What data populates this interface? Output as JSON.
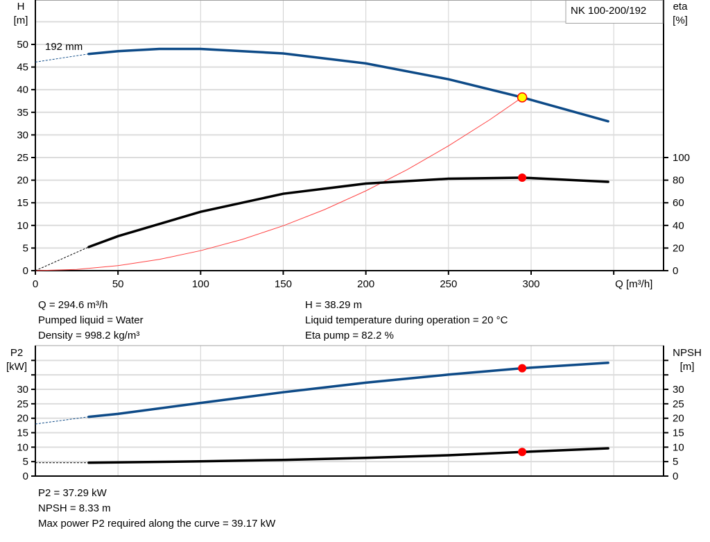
{
  "pump_label": "NK 100-200/192",
  "impeller_label": "192 mm",
  "colors": {
    "head": "#0d4a87",
    "eta": "#000000",
    "system": "#ff4040",
    "duty_point": "#ffff00",
    "marker": "#ff0000",
    "grid": "#d0d0d0"
  },
  "info_top": {
    "left": [
      "Q = 294.6 m³/h",
      "Pumped liquid = Water",
      "Density = 998.2 kg/m³"
    ],
    "right": [
      "H = 38.29 m",
      "Liquid temperature during operation = 20 °C",
      "Eta pump = 82.2 %"
    ]
  },
  "info_bottom": [
    "P2 = 37.29 kW",
    "NPSH = 8.33 m",
    "Max power P2 required along the curve = 39.17 kW"
  ],
  "chart_data": [
    {
      "type": "line",
      "xlabel": "Q [m³/h]",
      "ylabel": "H [m]",
      "ylabel_lines": [
        "H",
        "[m]"
      ],
      "y2label_lines": [
        "eta",
        "[%]"
      ],
      "xlim": [
        0,
        380
      ],
      "ylim": [
        0,
        60
      ],
      "y2lim": [
        0,
        100
      ],
      "xticks": [
        0,
        50,
        100,
        150,
        200,
        250,
        300
      ],
      "yticks": [
        0,
        5,
        10,
        15,
        20,
        25,
        30,
        35,
        40,
        45,
        50
      ],
      "y2ticks": [
        0,
        20,
        40,
        60,
        80,
        100
      ],
      "grid": true,
      "series": [
        {
          "key": "head",
          "axis": "left",
          "x": [
            32.3,
            50,
            75,
            100,
            150,
            200,
            250,
            294.6,
            346.6
          ],
          "y": [
            47.9,
            48.5,
            49.0,
            49.0,
            48.0,
            45.8,
            42.3,
            38.29,
            33.0
          ],
          "extrapolated": {
            "x": [
              0,
              32.3
            ],
            "y": [
              46.1,
              47.9
            ]
          }
        },
        {
          "key": "eta",
          "axis": "right",
          "x": [
            32.3,
            50,
            100,
            150,
            200,
            250,
            294.6,
            346.6
          ],
          "y": [
            20.9,
            30.5,
            52,
            68,
            77,
            81.3,
            82.2,
            78.5
          ],
          "extrapolated": {
            "x": [
              0,
              32.3
            ],
            "y": [
              0,
              20.9
            ]
          }
        },
        {
          "key": "system",
          "axis": "left",
          "x": [
            0,
            25,
            50,
            75,
            100,
            125,
            150,
            175,
            200,
            225,
            250,
            275,
            294.6
          ],
          "y": [
            0,
            0.28,
            1.1,
            2.48,
            4.41,
            6.89,
            9.92,
            13.5,
            17.64,
            22.33,
            27.57,
            33.36,
            38.29
          ]
        }
      ],
      "duty_point": {
        "x": 294.6,
        "y": 38.29,
        "eta": 82.2
      }
    },
    {
      "type": "line",
      "ylabel_lines": [
        "P2",
        "[kW]"
      ],
      "y2label_lines": [
        "NPSH",
        "[m]"
      ],
      "xlim": [
        0,
        380
      ],
      "ylim": [
        0,
        45
      ],
      "yticks": [
        0,
        5,
        10,
        15,
        20,
        25,
        30
      ],
      "yticks_unlabeled": [
        35,
        40
      ],
      "grid": true,
      "series": [
        {
          "key": "p2",
          "x": [
            32.3,
            50,
            100,
            150,
            200,
            250,
            294.6,
            346.6
          ],
          "y": [
            20.5,
            21.5,
            25.3,
            29.0,
            32.3,
            35.1,
            37.29,
            39.17
          ],
          "extrapolated": {
            "x": [
              0,
              32.3
            ],
            "y": [
              18.0,
              20.5
            ]
          }
        },
        {
          "key": "npsh",
          "x": [
            32.3,
            100,
            150,
            200,
            250,
            294.6,
            346.6
          ],
          "y": [
            4.6,
            5.1,
            5.6,
            6.3,
            7.2,
            8.33,
            9.6
          ],
          "extrapolated": {
            "x": [
              0,
              32.3
            ],
            "y": [
              4.6,
              4.6
            ]
          }
        }
      ],
      "duty_point": {
        "x": 294.6,
        "p2": 37.29,
        "npsh": 8.33
      }
    }
  ]
}
